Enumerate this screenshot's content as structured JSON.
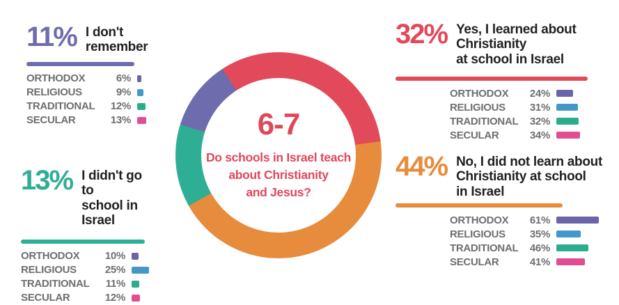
{
  "colors": {
    "red": "#e2495a",
    "orange": "#e78b3d",
    "teal": "#2fae96",
    "purple": "#6e6cad",
    "bar_orthodox": "#6b64a9",
    "bar_religious": "#4498c9",
    "bar_traditional": "#2bad8d",
    "bar_secular": "#e04d93",
    "label_gray": "#6d6e71",
    "text_black": "#231f20"
  },
  "chart_data": {
    "type": "donut",
    "title": "6-7",
    "question": "Do schools in Israel teach\nabout Christianity\nand Jesus?",
    "title_color": "#e0485a",
    "start_angle_deg": -33,
    "segments": [
      {
        "label": "Yes, I learned about Christianity at school in Israel",
        "pct": 32,
        "color": "#e2495a"
      },
      {
        "label": "No, I did not learn about Christianity at school in Israel",
        "pct": 44,
        "color": "#e78b3d"
      },
      {
        "label": "I didn't go to school in Israel",
        "pct": 13,
        "color": "#2fae96"
      },
      {
        "label": "I don't remember",
        "pct": 11,
        "color": "#6e6cad"
      }
    ],
    "breakdown_categories": [
      "ORTHODOX",
      "RELIGIOUS",
      "TRADITIONAL",
      "SECULAR"
    ],
    "breakdowns": [
      {
        "answer": "I don't remember",
        "values": [
          6,
          9,
          12,
          13
        ]
      },
      {
        "answer": "I didn't go to school in Israel",
        "values": [
          10,
          25,
          11,
          12
        ]
      },
      {
        "answer": "Yes, I learned about Christianity at school in Israel",
        "values": [
          24,
          31,
          32,
          34
        ]
      },
      {
        "answer": "No, I did not learn about Christianity at school in Israel",
        "values": [
          61,
          35,
          46,
          41
        ]
      }
    ]
  },
  "blocks": [
    {
      "pct": "11%",
      "desc": "I don't\nremember",
      "accent": "#6e6cad",
      "rows": [
        {
          "label": "ORTHODOX",
          "value": "6%",
          "color": "#6b64a9"
        },
        {
          "label": "RELIGIOUS",
          "value": "9%",
          "color": "#4498c9"
        },
        {
          "label": "TRADITIONAL",
          "value": "12%",
          "color": "#2bad8d"
        },
        {
          "label": "SECULAR",
          "value": "13%",
          "color": "#e04d93"
        }
      ]
    },
    {
      "pct": "13%",
      "desc": "I didn't go to\nschool in Israel",
      "accent": "#2fae96",
      "rows": [
        {
          "label": "ORTHODOX",
          "value": "10%",
          "color": "#6b64a9"
        },
        {
          "label": "RELIGIOUS",
          "value": "25%",
          "color": "#4498c9"
        },
        {
          "label": "TRADITIONAL",
          "value": "11%",
          "color": "#2bad8d"
        },
        {
          "label": "SECULAR",
          "value": "12%",
          "color": "#e04d93"
        }
      ]
    },
    {
      "pct": "32%",
      "desc": "Yes, I learned about Christianity\nat school in Israel",
      "accent": "#e2495a",
      "rows": [
        {
          "label": "ORTHODOX",
          "value": "24%",
          "color": "#6b64a9"
        },
        {
          "label": "RELIGIOUS",
          "value": "31%",
          "color": "#4498c9"
        },
        {
          "label": "TRADITIONAL",
          "value": "32%",
          "color": "#2bad8d"
        },
        {
          "label": "SECULAR",
          "value": "34%",
          "color": "#e04d93"
        }
      ]
    },
    {
      "pct": "44%",
      "desc": "No, I did not learn about\nChristianity at school\nin Israel",
      "accent": "#e78b3d",
      "rows": [
        {
          "label": "ORTHODOX",
          "value": "61%",
          "color": "#6b64a9"
        },
        {
          "label": "RELIGIOUS",
          "value": "35%",
          "color": "#4498c9"
        },
        {
          "label": "TRADITIONAL",
          "value": "46%",
          "color": "#2bad8d"
        },
        {
          "label": "SECULAR",
          "value": "41%",
          "color": "#e04d93"
        }
      ]
    }
  ]
}
